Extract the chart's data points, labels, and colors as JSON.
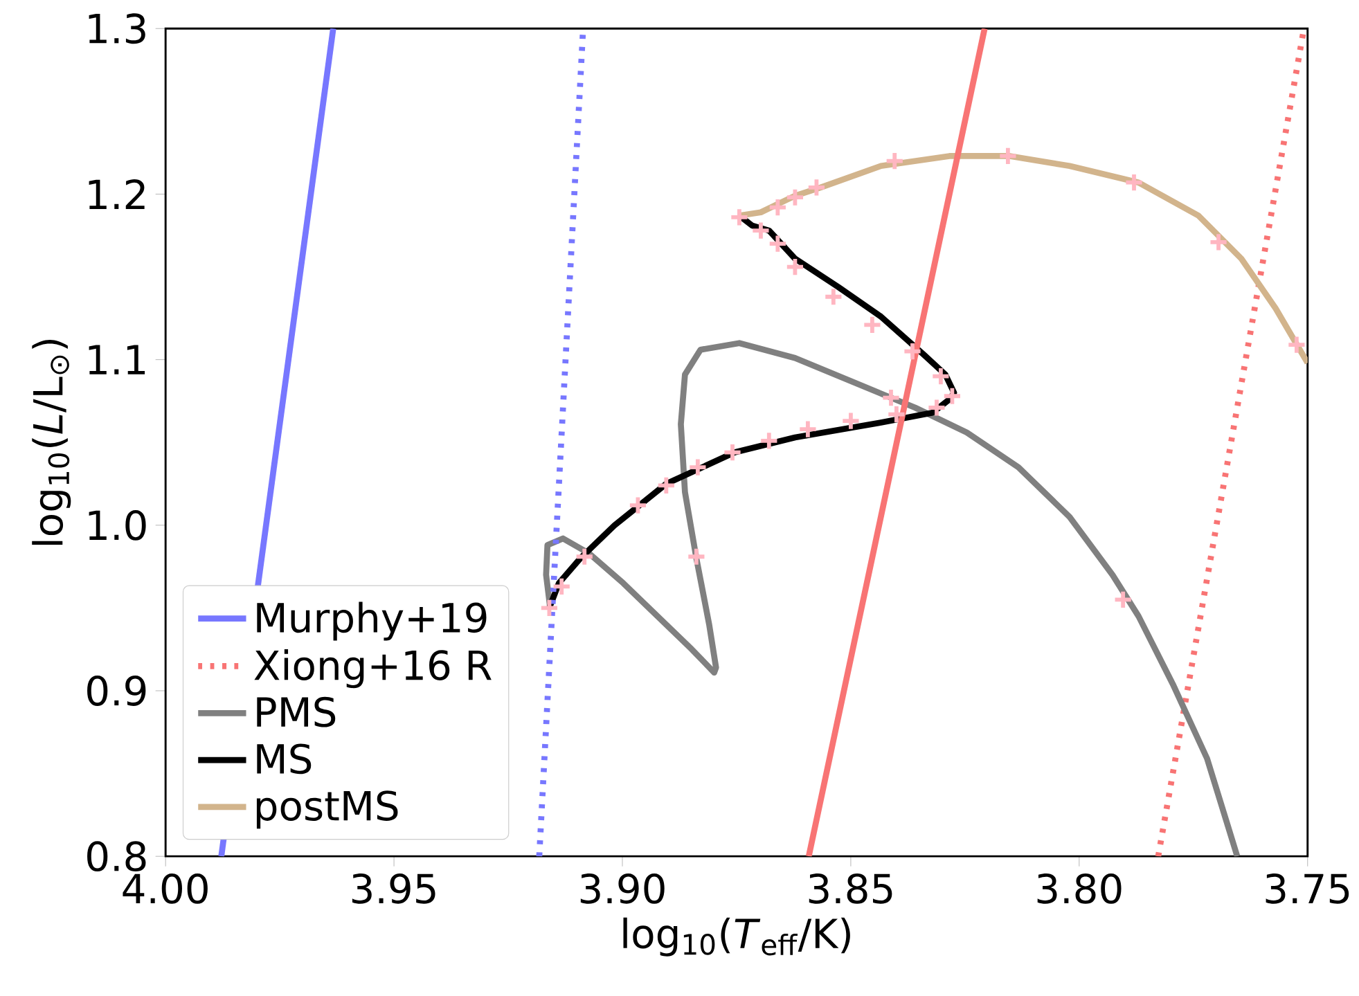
{
  "chart_data": {
    "type": "line",
    "xlabel": "log$_{10}$(*T*$_{eff}$/K)",
    "ylabel": "log$_{10}$(*L*/L$_{⊙}$)",
    "xlim": [
      4.0,
      3.75
    ],
    "ylim": [
      0.8,
      1.3
    ],
    "xticks": [
      {
        "value": 4.0,
        "label": "4.00"
      },
      {
        "value": 3.95,
        "label": "3.95"
      },
      {
        "value": 3.9,
        "label": "3.90"
      },
      {
        "value": 3.85,
        "label": "3.85"
      },
      {
        "value": 3.8,
        "label": "3.80"
      },
      {
        "value": 3.75,
        "label": "3.75"
      }
    ],
    "yticks": [
      {
        "value": 0.8,
        "label": "0.8"
      },
      {
        "value": 0.9,
        "label": "0.9"
      },
      {
        "value": 1.0,
        "label": "1.0"
      },
      {
        "value": 1.1,
        "label": "1.1"
      },
      {
        "value": 1.2,
        "label": "1.2"
      },
      {
        "value": 1.3,
        "label": "1.3"
      }
    ],
    "legend": "bottom left",
    "marker": "none",
    "series": [
      {
        "name": "Murphy+19",
        "color": "#7777ff",
        "line_style": "solid",
        "x": [
          3.9878,
          3.9633
        ],
        "values": [
          0.8,
          1.3
        ]
      },
      {
        "name": "Xiong+16 R",
        "color": "#f87474",
        "line_style": "dotted",
        "x": [
          3.7827,
          3.7508
        ],
        "values": [
          0.8,
          1.3
        ]
      },
      {
        "name": "PMS",
        "color": "#808080",
        "line_style": "solid",
        "x": [
          3.7654,
          3.772,
          3.7795,
          3.787,
          3.7927,
          3.8021,
          3.8133,
          3.8246,
          3.8359,
          3.8491,
          3.8622,
          3.8744,
          3.8829,
          3.8863,
          3.8872,
          3.8863,
          3.8838,
          3.881,
          3.8795,
          3.8799,
          3.8848,
          3.8923,
          3.8998,
          3.9073,
          3.913,
          3.9164,
          3.9167,
          3.9158
        ],
        "values": [
          0.8,
          0.859,
          0.904,
          0.945,
          0.97,
          1.005,
          1.035,
          1.056,
          1.071,
          1.086,
          1.101,
          1.11,
          1.106,
          1.091,
          1.061,
          1.02,
          0.98,
          0.94,
          0.914,
          0.911,
          0.925,
          0.945,
          0.965,
          0.983,
          0.992,
          0.988,
          0.97,
          0.95
        ]
      },
      {
        "name": "MS",
        "color": "#000000",
        "line_style": "solid",
        "x": [
          3.916,
          3.9139,
          3.9092,
          3.9017,
          3.8904,
          3.8754,
          3.8622,
          3.8434,
          3.8321,
          3.8284,
          3.8274,
          3.8293,
          3.834,
          3.8434,
          3.8528,
          3.8622,
          3.8679,
          3.8716,
          3.8744
        ],
        "values": [
          0.95,
          0.965,
          0.98,
          1.0,
          1.025,
          1.044,
          1.053,
          1.062,
          1.068,
          1.076,
          1.08,
          1.091,
          1.103,
          1.126,
          1.144,
          1.161,
          1.178,
          1.181,
          1.187
        ]
      },
      {
        "name": "postMS",
        "color": "#d2b48c",
        "line_style": "solid",
        "x": [
          3.8744,
          3.8697,
          3.866,
          3.8622,
          3.8566,
          3.8434,
          3.8284,
          3.8152,
          3.8021,
          3.787,
          3.7739,
          3.7645,
          3.757,
          3.75
        ],
        "values": [
          1.187,
          1.189,
          1.194,
          1.199,
          1.204,
          1.217,
          1.223,
          1.223,
          1.217,
          1.207,
          1.187,
          1.161,
          1.131,
          1.098
        ]
      },
      {
        "color": "#7777ff",
        "line_style": "dotted",
        "x": [
          3.9182,
          3.9086
        ],
        "values": [
          0.8,
          1.3
        ]
      },
      {
        "color": "#f87474",
        "line_style": "solid",
        "x": [
          3.8592,
          3.8207
        ],
        "values": [
          0.8,
          1.3
        ]
      },
      {
        "type": "scatter",
        "marker": "cross",
        "color": "#ffb6c1",
        "x": [
          3.916,
          3.9133,
          3.9083,
          3.8966,
          3.8904,
          3.8835,
          3.8759,
          3.8679,
          3.8594,
          3.85,
          3.84,
          3.8412,
          3.8312,
          3.8278,
          3.8303,
          3.8365,
          3.8453,
          3.8538,
          3.8622,
          3.866,
          3.8697,
          3.8744,
          3.866,
          3.8622,
          3.8575,
          3.8404,
          3.8156,
          3.788,
          3.7695,
          3.7524,
          3.7904,
          3.8838
        ],
        "values": [
          0.95,
          0.963,
          0.981,
          1.012,
          1.024,
          1.035,
          1.044,
          1.051,
          1.058,
          1.063,
          1.067,
          1.077,
          1.071,
          1.078,
          1.09,
          1.105,
          1.121,
          1.138,
          1.156,
          1.17,
          1.178,
          1.186,
          1.192,
          1.198,
          1.204,
          1.22,
          1.223,
          1.207,
          1.171,
          1.109,
          0.955,
          0.981
        ]
      }
    ]
  }
}
